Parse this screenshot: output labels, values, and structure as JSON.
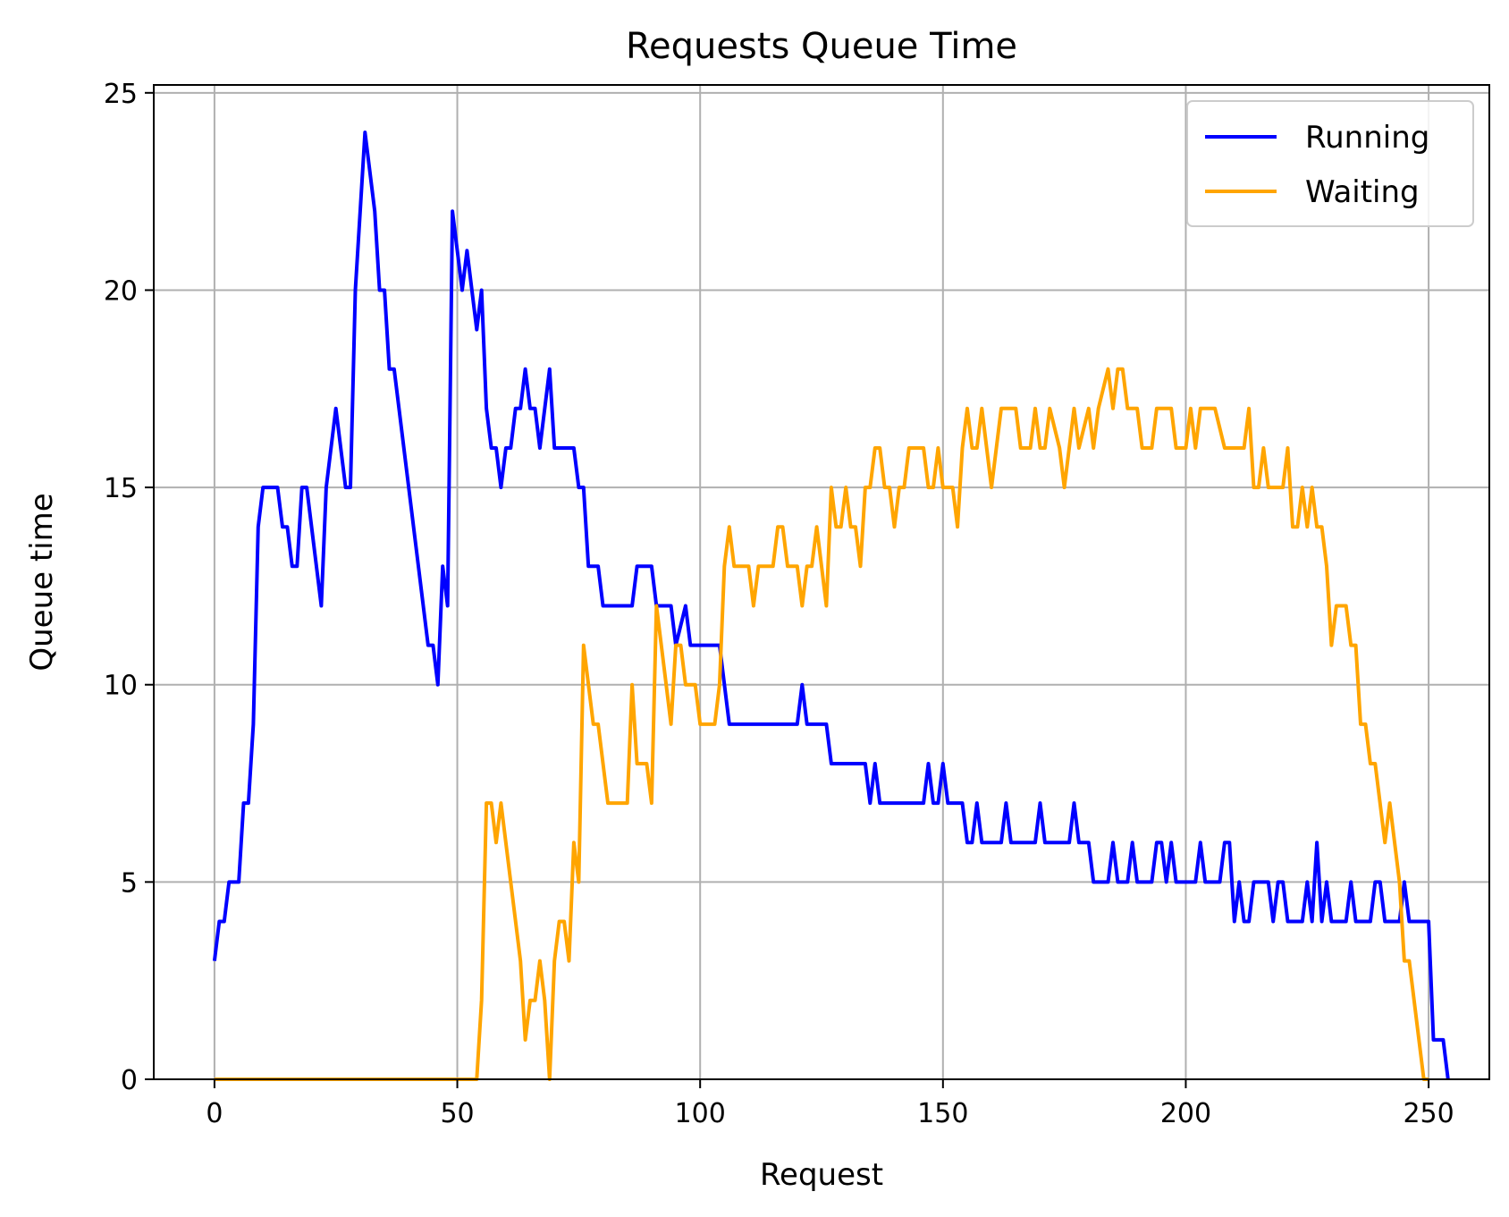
{
  "chart_data": {
    "type": "line",
    "title": "Requests Queue Time",
    "xlabel": "Request",
    "ylabel": "Queue time",
    "xlim": [
      -12.5,
      262.5
    ],
    "ylim": [
      0,
      25.2
    ],
    "xticks": [
      0,
      50,
      100,
      150,
      200,
      250
    ],
    "yticks": [
      0,
      5,
      10,
      15,
      20,
      25
    ],
    "grid": true,
    "legend_position": "top-right",
    "series": [
      {
        "name": "Running",
        "color": "#0000ff",
        "points": [
          [
            0,
            3
          ],
          [
            1,
            4
          ],
          [
            2,
            4
          ],
          [
            3,
            5
          ],
          [
            5,
            5
          ],
          [
            6,
            7
          ],
          [
            7,
            7
          ],
          [
            8,
            9
          ],
          [
            9,
            14
          ],
          [
            10,
            15
          ],
          [
            13,
            15
          ],
          [
            14,
            14
          ],
          [
            15,
            14
          ],
          [
            16,
            13
          ],
          [
            17,
            13
          ],
          [
            18,
            15
          ],
          [
            19,
            15
          ],
          [
            22,
            12
          ],
          [
            23,
            15
          ],
          [
            25,
            17
          ],
          [
            27,
            15
          ],
          [
            28,
            15
          ],
          [
            29,
            20
          ],
          [
            31,
            24
          ],
          [
            33,
            22
          ],
          [
            34,
            20
          ],
          [
            35,
            20
          ],
          [
            36,
            18
          ],
          [
            37,
            18
          ],
          [
            44,
            11
          ],
          [
            45,
            11
          ],
          [
            46,
            10
          ],
          [
            47,
            13
          ],
          [
            48,
            12
          ],
          [
            49,
            22
          ],
          [
            51,
            20
          ],
          [
            52,
            21
          ],
          [
            54,
            19
          ],
          [
            55,
            20
          ],
          [
            56,
            17
          ],
          [
            57,
            16
          ],
          [
            58,
            16
          ],
          [
            59,
            15
          ],
          [
            60,
            16
          ],
          [
            61,
            16
          ],
          [
            62,
            17
          ],
          [
            63,
            17
          ],
          [
            64,
            18
          ],
          [
            65,
            17
          ],
          [
            66,
            17
          ],
          [
            67,
            16
          ],
          [
            69,
            18
          ],
          [
            70,
            16
          ],
          [
            74,
            16
          ],
          [
            75,
            15
          ],
          [
            76,
            15
          ],
          [
            77,
            13
          ],
          [
            79,
            13
          ],
          [
            80,
            12
          ],
          [
            86,
            12
          ],
          [
            87,
            13
          ],
          [
            90,
            13
          ],
          [
            91,
            12
          ],
          [
            94,
            12
          ],
          [
            95,
            11
          ],
          [
            97,
            12
          ],
          [
            98,
            11
          ],
          [
            104,
            11
          ],
          [
            106,
            9
          ],
          [
            120,
            9
          ],
          [
            121,
            10
          ],
          [
            122,
            9
          ],
          [
            126,
            9
          ],
          [
            127,
            8
          ],
          [
            134,
            8
          ],
          [
            135,
            7
          ],
          [
            136,
            8
          ],
          [
            137,
            7
          ],
          [
            146,
            7
          ],
          [
            147,
            8
          ],
          [
            148,
            7
          ],
          [
            149,
            7
          ],
          [
            150,
            8
          ],
          [
            151,
            7
          ],
          [
            154,
            7
          ],
          [
            155,
            6
          ],
          [
            156,
            6
          ],
          [
            157,
            7
          ],
          [
            158,
            6
          ],
          [
            162,
            6
          ],
          [
            163,
            7
          ],
          [
            164,
            6
          ],
          [
            169,
            6
          ],
          [
            170,
            7
          ],
          [
            171,
            6
          ],
          [
            176,
            6
          ],
          [
            177,
            7
          ],
          [
            178,
            6
          ],
          [
            180,
            6
          ],
          [
            181,
            5
          ],
          [
            184,
            5
          ],
          [
            185,
            6
          ],
          [
            186,
            5
          ],
          [
            188,
            5
          ],
          [
            189,
            6
          ],
          [
            190,
            5
          ],
          [
            193,
            5
          ],
          [
            194,
            6
          ],
          [
            195,
            6
          ],
          [
            196,
            5
          ],
          [
            197,
            6
          ],
          [
            198,
            5
          ],
          [
            202,
            5
          ],
          [
            203,
            6
          ],
          [
            204,
            5
          ],
          [
            207,
            5
          ],
          [
            208,
            6
          ],
          [
            209,
            6
          ],
          [
            210,
            4
          ],
          [
            211,
            5
          ],
          [
            212,
            4
          ],
          [
            213,
            4
          ],
          [
            214,
            5
          ],
          [
            217,
            5
          ],
          [
            218,
            4
          ],
          [
            219,
            5
          ],
          [
            220,
            5
          ],
          [
            221,
            4
          ],
          [
            224,
            4
          ],
          [
            225,
            5
          ],
          [
            226,
            4
          ],
          [
            227,
            6
          ],
          [
            228,
            4
          ],
          [
            229,
            5
          ],
          [
            230,
            4
          ],
          [
            233,
            4
          ],
          [
            234,
            5
          ],
          [
            235,
            4
          ],
          [
            238,
            4
          ],
          [
            239,
            5
          ],
          [
            240,
            5
          ],
          [
            241,
            4
          ],
          [
            244,
            4
          ],
          [
            245,
            5
          ],
          [
            246,
            4
          ],
          [
            250,
            4
          ],
          [
            251,
            1
          ],
          [
            253,
            1
          ],
          [
            254,
            0
          ]
        ]
      },
      {
        "name": "Waiting",
        "color": "#ffa500",
        "points": [
          [
            0,
            0
          ],
          [
            54,
            0
          ],
          [
            55,
            2
          ],
          [
            56,
            7
          ],
          [
            57,
            7
          ],
          [
            58,
            6
          ],
          [
            59,
            7
          ],
          [
            63,
            3
          ],
          [
            64,
            1
          ],
          [
            65,
            2
          ],
          [
            66,
            2
          ],
          [
            67,
            3
          ],
          [
            68,
            2
          ],
          [
            69,
            0
          ],
          [
            70,
            3
          ],
          [
            71,
            4
          ],
          [
            72,
            4
          ],
          [
            73,
            3
          ],
          [
            74,
            6
          ],
          [
            75,
            5
          ],
          [
            76,
            11
          ],
          [
            78,
            9
          ],
          [
            79,
            9
          ],
          [
            81,
            7
          ],
          [
            85,
            7
          ],
          [
            86,
            10
          ],
          [
            87,
            8
          ],
          [
            89,
            8
          ],
          [
            90,
            7
          ],
          [
            91,
            12
          ],
          [
            93,
            10
          ],
          [
            94,
            9
          ],
          [
            95,
            11
          ],
          [
            96,
            11
          ],
          [
            97,
            10
          ],
          [
            99,
            10
          ],
          [
            100,
            9
          ],
          [
            103,
            9
          ],
          [
            104,
            10
          ],
          [
            105,
            13
          ],
          [
            106,
            14
          ],
          [
            107,
            13
          ],
          [
            110,
            13
          ],
          [
            111,
            12
          ],
          [
            112,
            13
          ],
          [
            115,
            13
          ],
          [
            116,
            14
          ],
          [
            117,
            14
          ],
          [
            118,
            13
          ],
          [
            120,
            13
          ],
          [
            121,
            12
          ],
          [
            122,
            13
          ],
          [
            123,
            13
          ],
          [
            124,
            14
          ],
          [
            125,
            13
          ],
          [
            126,
            12
          ],
          [
            127,
            15
          ],
          [
            128,
            14
          ],
          [
            129,
            14
          ],
          [
            130,
            15
          ],
          [
            131,
            14
          ],
          [
            132,
            14
          ],
          [
            133,
            13
          ],
          [
            134,
            15
          ],
          [
            135,
            15
          ],
          [
            136,
            16
          ],
          [
            137,
            16
          ],
          [
            138,
            15
          ],
          [
            139,
            15
          ],
          [
            140,
            14
          ],
          [
            141,
            15
          ],
          [
            142,
            15
          ],
          [
            143,
            16
          ],
          [
            146,
            16
          ],
          [
            147,
            15
          ],
          [
            148,
            15
          ],
          [
            149,
            16
          ],
          [
            150,
            15
          ],
          [
            151,
            15
          ],
          [
            152,
            15
          ],
          [
            153,
            14
          ],
          [
            154,
            16
          ],
          [
            155,
            17
          ],
          [
            156,
            16
          ],
          [
            157,
            16
          ],
          [
            158,
            17
          ],
          [
            160,
            15
          ],
          [
            162,
            17
          ],
          [
            165,
            17
          ],
          [
            166,
            16
          ],
          [
            168,
            16
          ],
          [
            169,
            17
          ],
          [
            170,
            16
          ],
          [
            171,
            16
          ],
          [
            172,
            17
          ],
          [
            174,
            16
          ],
          [
            175,
            15
          ],
          [
            177,
            17
          ],
          [
            178,
            16
          ],
          [
            180,
            17
          ],
          [
            181,
            16
          ],
          [
            182,
            17
          ],
          [
            184,
            18
          ],
          [
            185,
            17
          ],
          [
            186,
            18
          ],
          [
            187,
            18
          ],
          [
            188,
            17
          ],
          [
            190,
            17
          ],
          [
            191,
            16
          ],
          [
            193,
            16
          ],
          [
            194,
            17
          ],
          [
            197,
            17
          ],
          [
            198,
            16
          ],
          [
            200,
            16
          ],
          [
            201,
            17
          ],
          [
            202,
            16
          ],
          [
            203,
            17
          ],
          [
            205,
            17
          ],
          [
            206,
            17
          ],
          [
            208,
            16
          ],
          [
            212,
            16
          ],
          [
            213,
            17
          ],
          [
            214,
            15
          ],
          [
            215,
            15
          ],
          [
            216,
            16
          ],
          [
            217,
            15
          ],
          [
            220,
            15
          ],
          [
            221,
            16
          ],
          [
            222,
            14
          ],
          [
            223,
            14
          ],
          [
            224,
            15
          ],
          [
            225,
            14
          ],
          [
            226,
            15
          ],
          [
            227,
            14
          ],
          [
            228,
            14
          ],
          [
            229,
            13
          ],
          [
            230,
            11
          ],
          [
            231,
            12
          ],
          [
            233,
            12
          ],
          [
            234,
            11
          ],
          [
            235,
            11
          ],
          [
            236,
            9
          ],
          [
            237,
            9
          ],
          [
            238,
            8
          ],
          [
            239,
            8
          ],
          [
            241,
            6
          ],
          [
            242,
            7
          ],
          [
            244,
            5
          ],
          [
            245,
            3
          ],
          [
            246,
            3
          ],
          [
            249,
            0
          ],
          [
            250,
            0
          ]
        ]
      }
    ]
  }
}
